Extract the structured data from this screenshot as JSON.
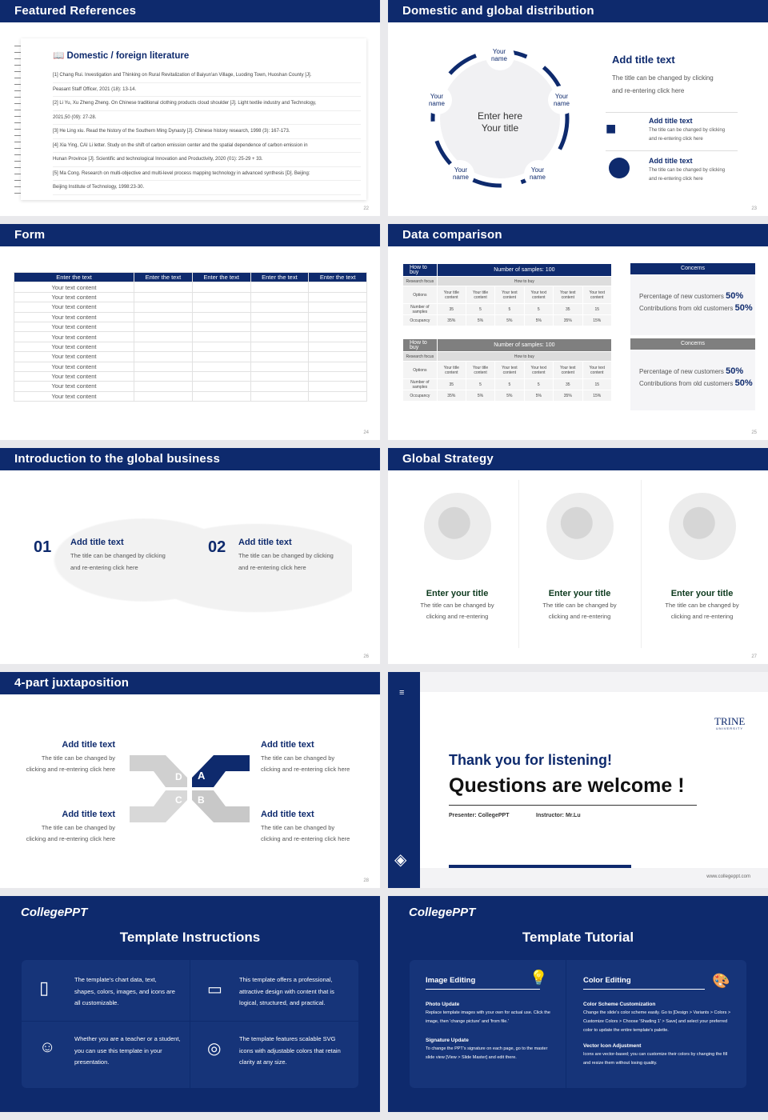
{
  "s22": {
    "title": "Featured References",
    "heading": "Domestic / foreign literature",
    "refs": [
      "[1] Chang Rui. Investigation and Thinking on Rural Revitalization of Baiyun'an Village, Luoding Town, Huoshan County [J].",
      "Peasant Staff Officer, 2021 (18): 13-14.",
      "[2] Li Yu, Xu Zheng Zheng. On Chinese traditional clothing products cloud shoulder [J]. Light textile industry and Technology,",
      "2021,50 (09): 27-28.",
      "[3] He Ling xiu. Read the history of the Southern Ming Dynasty [J]. Chinese history research, 1998 (3): 167-173.",
      "[4] Xia Ying, CAI Li letter. Study on the shift of carbon emission center and the spatial dependence of carbon emission in",
      "Hunan Province [J]. Scientific and technological Innovation and Productivity, 2020 (01): 25-29 + 33.",
      "[5] Ma Cong. Research on multi-objective and multi-level process mapping technology in advanced synthesis [D]. Beijing:",
      "Beijing Institute of Technology, 1998:23-30."
    ],
    "page": "22"
  },
  "s23": {
    "title": "Domestic and global distribution",
    "center": [
      "Enter here",
      "Your title"
    ],
    "names": [
      "Your name",
      "Your name",
      "Your name",
      "Your name",
      "Your name"
    ],
    "add_title": "Add title text",
    "desc": [
      "The title can be changed by clicking",
      "and re-entering click here"
    ],
    "items": [
      {
        "title": "Add title text",
        "desc": [
          "The title can be changed by clicking",
          "and re-entering click here"
        ]
      },
      {
        "title": "Add title text",
        "desc": [
          "The title can be changed by clicking",
          "and re-entering click here"
        ]
      }
    ],
    "page": "23"
  },
  "s24": {
    "title": "Form",
    "headers": [
      "Enter the text",
      "Enter the text",
      "Enter the text",
      "Enter the text",
      "Enter the text"
    ],
    "row_label": "Your text content",
    "rows": 12,
    "page": "24"
  },
  "s25": {
    "title": "Data comparison",
    "tables": [
      {
        "h1": "How to buy",
        "h2": "Number of samples: 100",
        "focus": "Research focus",
        "focus_val": "How to buy",
        "options": "Options",
        "cols": [
          "Your title content",
          "Your title content",
          "Your text content",
          "Your text content",
          "Your text content",
          "Your text content"
        ],
        "samples_label": "Number of samples",
        "samples": [
          "35",
          "5",
          "5",
          "5",
          "35",
          "15"
        ],
        "occ_label": "Occupancy",
        "occ": [
          "35%",
          "5%",
          "5%",
          "5%",
          "35%",
          "15%"
        ]
      },
      {
        "h1": "How to buy",
        "h2": "Number of samples: 100",
        "focus": "Research focus",
        "focus_val": "How to buy",
        "options": "Options",
        "cols": [
          "Your title content",
          "Your title content",
          "Your text content",
          "Your text content",
          "Your text content",
          "Your text content"
        ],
        "samples_label": "Number of samples",
        "samples": [
          "35",
          "5",
          "5",
          "5",
          "35",
          "15"
        ],
        "occ_label": "Occupancy",
        "occ": [
          "35%",
          "5%",
          "5%",
          "5%",
          "35%",
          "15%"
        ]
      }
    ],
    "concerns": {
      "title": "Concerns",
      "l1": "Percentage of new customers",
      "v1": "50%",
      "l2": "Contributions from old customers",
      "v2": "50%"
    },
    "colors": {
      "navy": "#0e2a6d",
      "gray": "#7f7f7f"
    },
    "page": "25"
  },
  "s26": {
    "title": "Introduction to the global business",
    "items": [
      {
        "num": "01",
        "title": "Add title text",
        "desc": [
          "The title can be changed by clicking",
          "and re-entering click here"
        ]
      },
      {
        "num": "02",
        "title": "Add title text",
        "desc": [
          "The title can be changed by clicking",
          "and re-entering click here"
        ]
      }
    ],
    "page": "26"
  },
  "s27": {
    "title": "Global Strategy",
    "items": [
      {
        "title": "Enter your title",
        "desc": [
          "The title can be changed by",
          "clicking and re-entering"
        ]
      },
      {
        "title": "Enter your title",
        "desc": [
          "The title can be changed by",
          "clicking and re-entering"
        ]
      },
      {
        "title": "Enter your title",
        "desc": [
          "The title can be changed by",
          "clicking and re-entering"
        ]
      }
    ],
    "page": "27"
  },
  "s28": {
    "title": "4-part juxtaposition",
    "items": [
      {
        "title": "Add title text",
        "desc": [
          "The title can be changed by",
          "clicking and re-entering click here"
        ]
      },
      {
        "title": "Add title text",
        "desc": [
          "The title can be changed by",
          "clicking and re-entering click here"
        ]
      },
      {
        "title": "Add title text",
        "desc": [
          "The title can be changed by",
          "clicking and re-entering click here"
        ]
      },
      {
        "title": "Add title text",
        "desc": [
          "The title can be changed by",
          "clicking and re-entering click here"
        ]
      }
    ],
    "letters": [
      "D",
      "A",
      "C",
      "B"
    ],
    "page": "28"
  },
  "s29": {
    "thanks": "Thank you for listening!",
    "questions": "Questions are welcome !",
    "presenter": "Presenter: CollegePPT",
    "instructor": "Instructor: Mr.Lu",
    "brand": "TRINE",
    "brand_sub": "UNIVERSITY",
    "url": "www.collegeppt.com"
  },
  "s30": {
    "logo": "CollegePPT",
    "title": "Template Instructions",
    "items": [
      "The template's chart data, text, shapes, colors, images, and icons are all customizable.",
      "This template offers a professional, attractive design with content that is logical, structured, and practical.",
      "Whether you are a teacher or a student, you can use this template in your presentation.",
      "The template features scalable SVG icons with adjustable colors that retain clarity at any size."
    ]
  },
  "s31": {
    "logo": "CollegePPT",
    "title": "Template Tutorial",
    "image_editing": {
      "title": "Image Editing",
      "sections": [
        {
          "h": "Photo Update",
          "t": "Replace template images with your own for actual use. Click the image, then 'change picture' and 'from file.'"
        },
        {
          "h": "Signature Update",
          "t": "To change the PPT's signature on each page, go to the master slide view [View > Slide Master] and edit there."
        }
      ]
    },
    "color_editing": {
      "title": "Color Editing",
      "sections": [
        {
          "h": "Color Scheme Customization",
          "t": "Change the slide's color scheme easily. Go to [Design > Variants > Colors > Customize Colors > Choose 'Shading 1' > Save] and select your preferred color to update the entire template's palette."
        },
        {
          "h": "Vector Icon Adjustment",
          "t": "Icons are vector-based; you can customize their colors by changing the fill and resize them without losing quality."
        }
      ]
    }
  }
}
